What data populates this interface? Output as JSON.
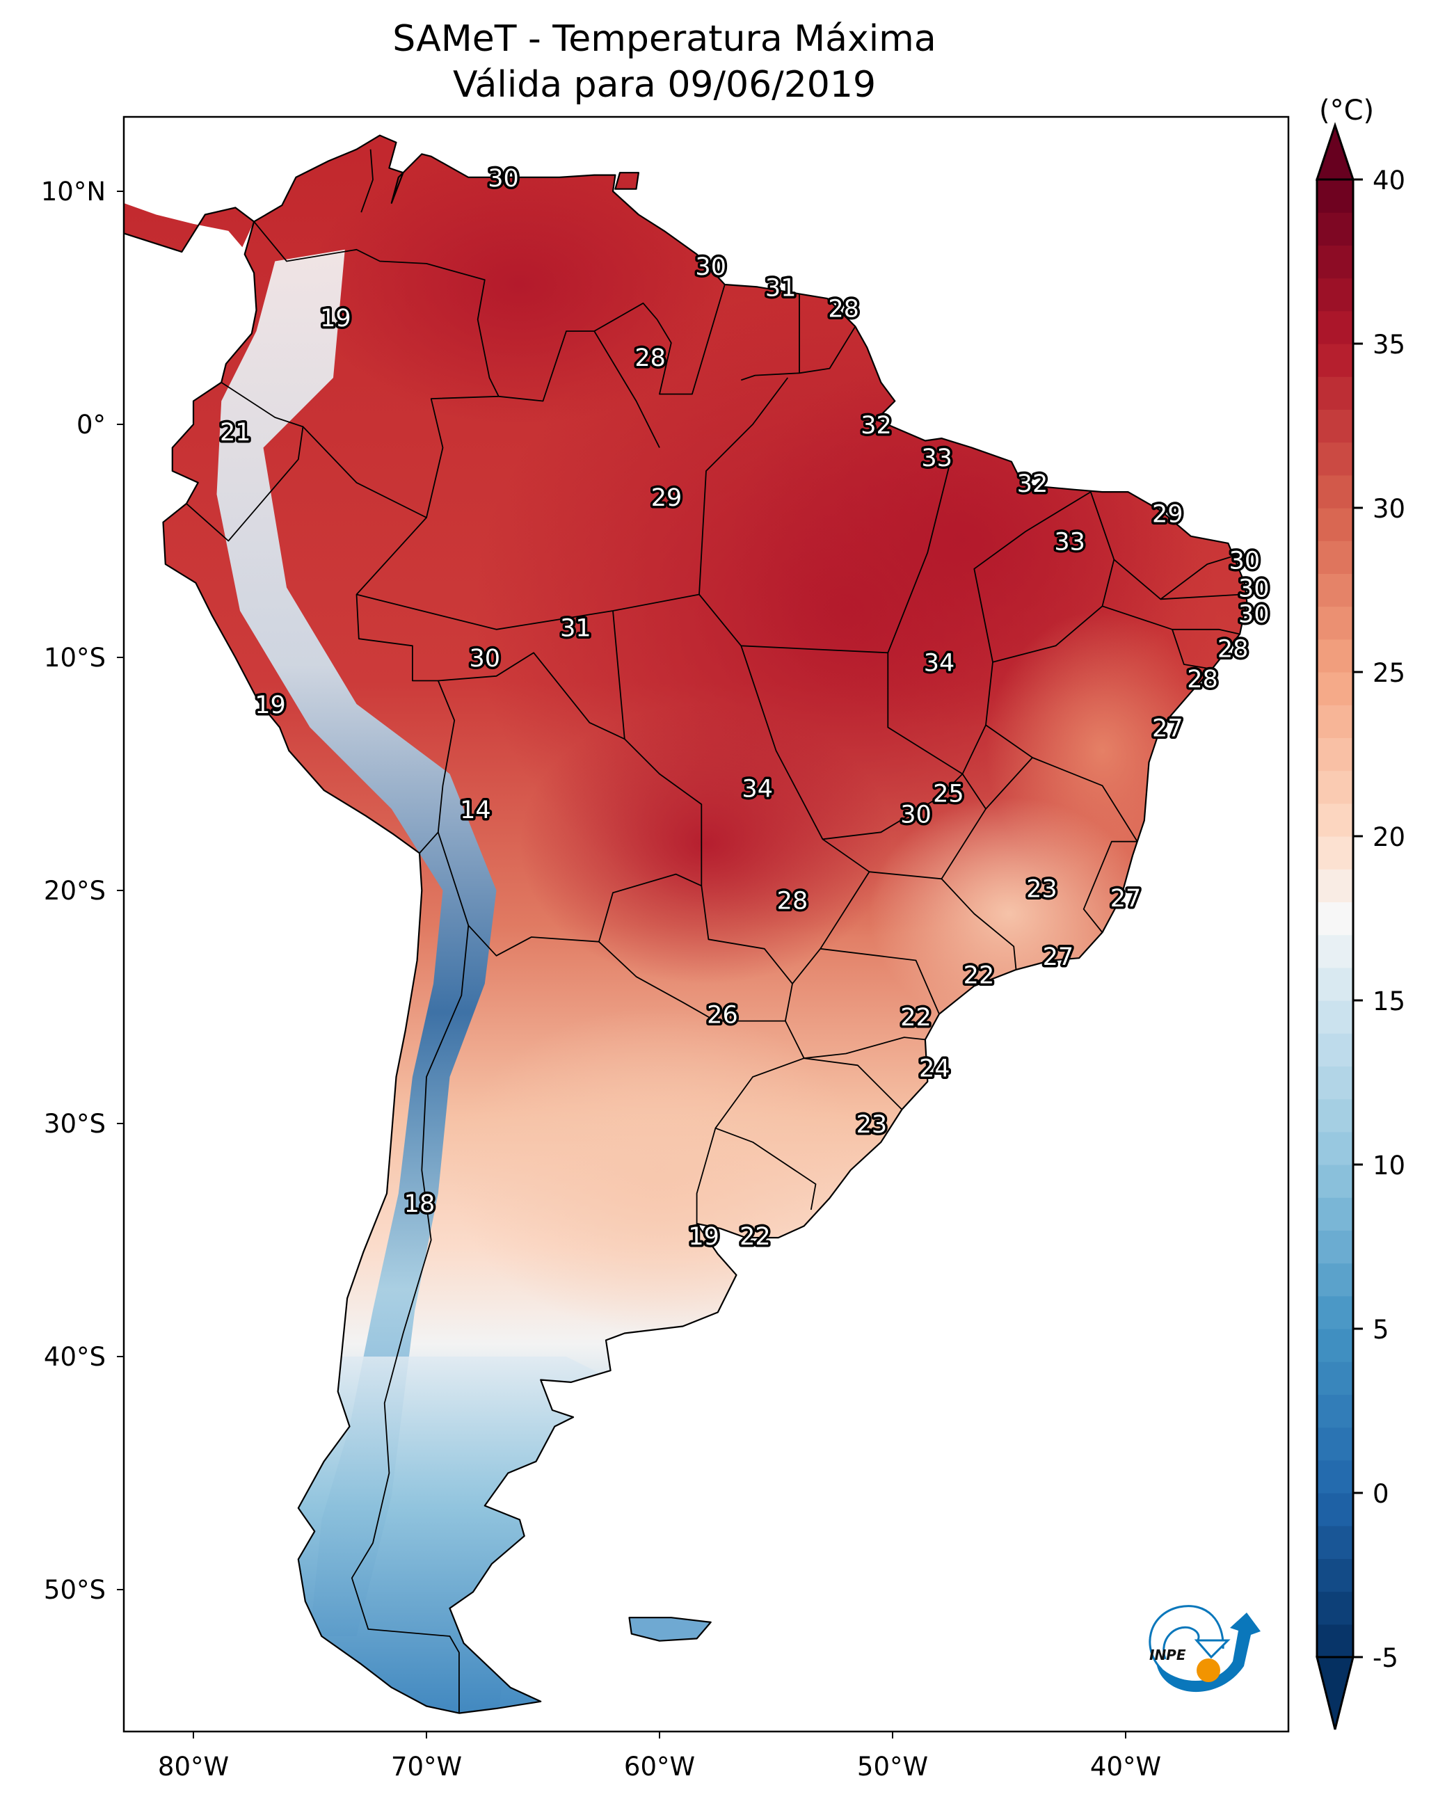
{
  "title": {
    "line1": "SAMeT - Temperatura Máxima",
    "line2": "Válida para 09/06/2019"
  },
  "colorbar": {
    "unit": "(°C)",
    "min": -5,
    "max": 40,
    "extend": "both",
    "ticks": [
      -5,
      0,
      5,
      10,
      15,
      20,
      25,
      30,
      35,
      40
    ],
    "tick_labels": [
      "-5",
      "0",
      "5",
      "10",
      "15",
      "20",
      "25",
      "30",
      "35",
      "40"
    ],
    "colormap": "RdBu_r",
    "color_stops": [
      {
        "value": -5,
        "color": "#053061"
      },
      {
        "value": 0,
        "color": "#2166ac"
      },
      {
        "value": 5,
        "color": "#4393c3"
      },
      {
        "value": 10,
        "color": "#92c5de"
      },
      {
        "value": 15,
        "color": "#d1e5f0"
      },
      {
        "value": 17.5,
        "color": "#f7f7f7"
      },
      {
        "value": 20,
        "color": "#fddbc7"
      },
      {
        "value": 25,
        "color": "#f4a582"
      },
      {
        "value": 30,
        "color": "#d6604d"
      },
      {
        "value": 35,
        "color": "#b2182b"
      },
      {
        "value": 40,
        "color": "#67001f"
      }
    ]
  },
  "axes": {
    "lon_range": [
      -83,
      -33
    ],
    "lat_range": [
      -56.1,
      13.2
    ],
    "x_ticks": [
      {
        "value": -80,
        "label": "80°W"
      },
      {
        "value": -70,
        "label": "70°W"
      },
      {
        "value": -60,
        "label": "60°W"
      },
      {
        "value": -50,
        "label": "50°W"
      },
      {
        "value": -40,
        "label": "40°W"
      }
    ],
    "y_ticks": [
      {
        "value": 10,
        "label": "10°N"
      },
      {
        "value": 0,
        "label": "0°"
      },
      {
        "value": -10,
        "label": "10°S"
      },
      {
        "value": -20,
        "label": "20°S"
      },
      {
        "value": -30,
        "label": "30°S"
      },
      {
        "value": -40,
        "label": "40°S"
      },
      {
        "value": -50,
        "label": "50°S"
      }
    ]
  },
  "logo": {
    "text": "INPE",
    "blue": "#0a77bb",
    "orange": "#f29400"
  },
  "chart_data": {
    "type": "heatmap",
    "title": "SAMeT - Temperatura Máxima Válida para 09/06/2019",
    "xlabel": "",
    "ylabel": "",
    "units": "°C",
    "region": "South America",
    "xlim": [
      -83,
      -33
    ],
    "ylim": [
      -56.1,
      13.2
    ],
    "grid": false,
    "legend": "colorbar-right",
    "annotations": [
      {
        "lon": -66.7,
        "lat": 10.6,
        "value": 30
      },
      {
        "lon": -73.9,
        "lat": 4.6,
        "value": 19
      },
      {
        "lon": -57.8,
        "lat": 6.8,
        "value": 30
      },
      {
        "lon": -54.8,
        "lat": 5.9,
        "value": 31
      },
      {
        "lon": -52.1,
        "lat": 5.0,
        "value": 28
      },
      {
        "lon": -60.4,
        "lat": 2.9,
        "value": 28
      },
      {
        "lon": -78.2,
        "lat": -0.3,
        "value": 21
      },
      {
        "lon": -50.7,
        "lat": 0.0,
        "value": 32
      },
      {
        "lon": -48.1,
        "lat": -1.4,
        "value": 33
      },
      {
        "lon": -44.0,
        "lat": -2.5,
        "value": 32
      },
      {
        "lon": -59.7,
        "lat": -3.1,
        "value": 29
      },
      {
        "lon": -38.2,
        "lat": -3.8,
        "value": 29
      },
      {
        "lon": -42.4,
        "lat": -5.0,
        "value": 33
      },
      {
        "lon": -34.9,
        "lat": -5.8,
        "value": 30
      },
      {
        "lon": -34.5,
        "lat": -7.0,
        "value": 30
      },
      {
        "lon": -34.5,
        "lat": -8.1,
        "value": 30
      },
      {
        "lon": -63.6,
        "lat": -8.7,
        "value": 31
      },
      {
        "lon": -48.0,
        "lat": -10.2,
        "value": 34
      },
      {
        "lon": -67.5,
        "lat": -10.0,
        "value": 30
      },
      {
        "lon": -35.4,
        "lat": -9.6,
        "value": 28
      },
      {
        "lon": -36.7,
        "lat": -10.9,
        "value": 28
      },
      {
        "lon": -76.7,
        "lat": -12.0,
        "value": 19
      },
      {
        "lon": -38.2,
        "lat": -13.0,
        "value": 27
      },
      {
        "lon": -55.8,
        "lat": -15.6,
        "value": 34
      },
      {
        "lon": -47.6,
        "lat": -15.8,
        "value": 25
      },
      {
        "lon": -67.9,
        "lat": -16.5,
        "value": 14
      },
      {
        "lon": -49.0,
        "lat": -16.7,
        "value": 30
      },
      {
        "lon": -43.6,
        "lat": -19.9,
        "value": 23
      },
      {
        "lon": -54.3,
        "lat": -20.4,
        "value": 28
      },
      {
        "lon": -40.0,
        "lat": -20.3,
        "value": 27
      },
      {
        "lon": -42.9,
        "lat": -22.8,
        "value": 27
      },
      {
        "lon": -46.3,
        "lat": -23.6,
        "value": 22
      },
      {
        "lon": -49.0,
        "lat": -25.4,
        "value": 22
      },
      {
        "lon": -57.3,
        "lat": -25.3,
        "value": 26
      },
      {
        "lon": -48.2,
        "lat": -27.6,
        "value": 24
      },
      {
        "lon": -50.9,
        "lat": -30.0,
        "value": 23
      },
      {
        "lon": -70.3,
        "lat": -33.4,
        "value": 18
      },
      {
        "lon": -58.1,
        "lat": -34.8,
        "value": 19
      },
      {
        "lon": -55.9,
        "lat": -34.8,
        "value": 22
      }
    ]
  }
}
